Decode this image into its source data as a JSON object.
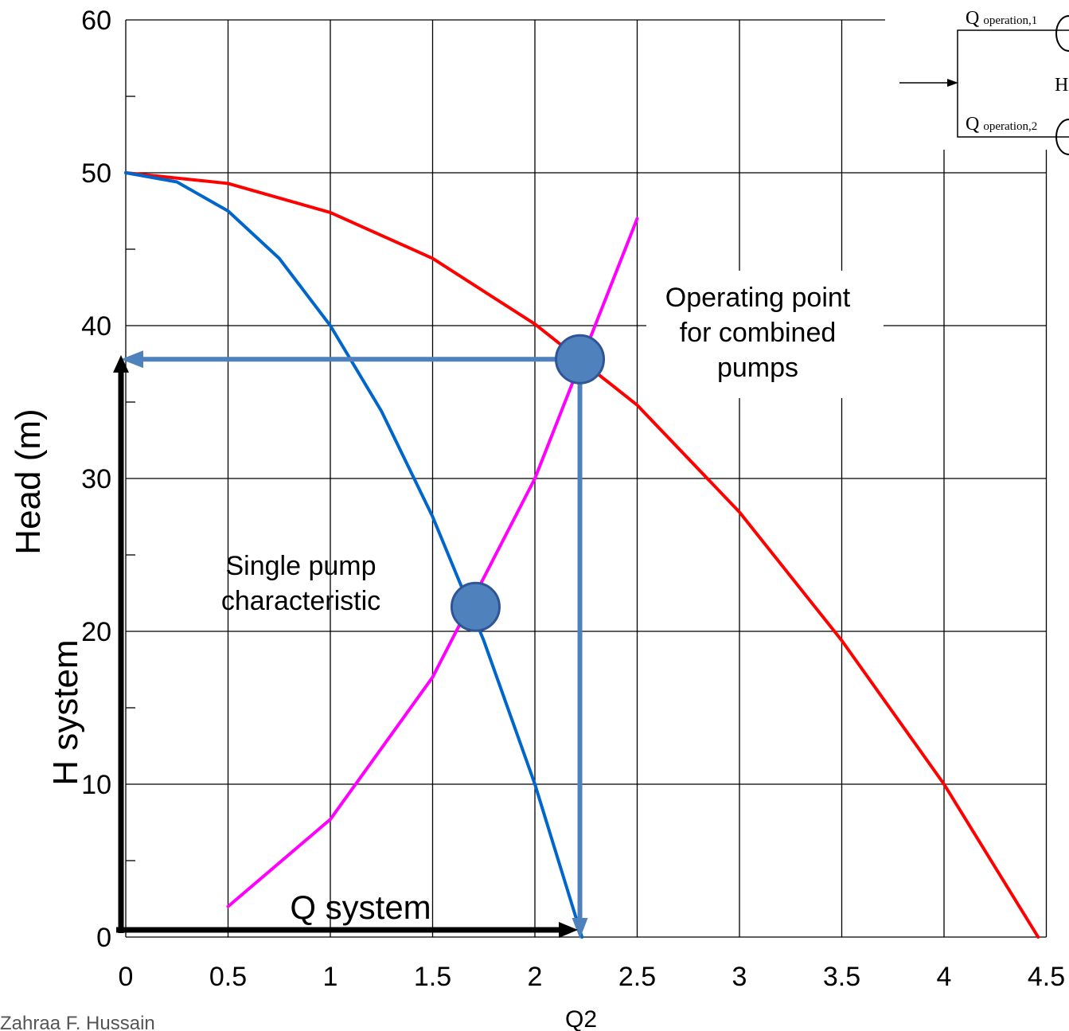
{
  "chart_data": {
    "type": "line",
    "ylabel": "Head (m)",
    "xlim": [
      0,
      4.5
    ],
    "ylim": [
      0,
      60
    ],
    "grid": true,
    "x_ticks": [
      "0",
      "0.5",
      "1",
      "1.5",
      "2",
      "2.5",
      "3",
      "3.5",
      "4",
      "4.5"
    ],
    "y_ticks": [
      "0",
      "10",
      "20",
      "30",
      "40",
      "50",
      "60"
    ],
    "colors": {
      "combined": "#ff0000",
      "single": "#0066cc",
      "system": "#ff00ff",
      "marker": "#4f81bd",
      "guide": "#4f81bd"
    },
    "series": [
      {
        "color": "#ff0000",
        "x": [
          0,
          0.5,
          1,
          1.5,
          2,
          2.5,
          3,
          3.5,
          4,
          4.46
        ],
        "y": [
          50,
          49.3,
          47.4,
          44.4,
          40.1,
          34.8,
          27.8,
          19.4,
          10,
          0
        ]
      },
      {
        "color": "#0066cc",
        "x": [
          0,
          0.25,
          0.5,
          0.75,
          1,
          1.25,
          1.5,
          1.75,
          2,
          2.23
        ],
        "y": [
          50,
          49.4,
          47.5,
          44.4,
          40,
          34.4,
          27.5,
          19.4,
          10,
          0
        ]
      },
      {
        "color": "#ff00ff",
        "x": [
          0.5,
          1,
          1.5,
          2,
          2.5
        ],
        "y": [
          2,
          7.7,
          17,
          30,
          47
        ]
      }
    ],
    "operating_points": [
      {
        "x": 2.22,
        "y": 37.8
      },
      {
        "x": 1.71,
        "y": 21.6
      }
    ],
    "annotations": {
      "combined": [
        "Operating point",
        "for combined",
        "pumps"
      ],
      "single": [
        "Single pump",
        "characteristic"
      ],
      "q_system": "Q system",
      "h_system": "H system",
      "q2": "Q2",
      "credit": "Zahraa F. Hussain"
    },
    "inset": {
      "q1": "Q",
      "q1_sub": "operation,1",
      "q2": "Q",
      "q2_sub": "operation,2",
      "h": "H"
    }
  }
}
